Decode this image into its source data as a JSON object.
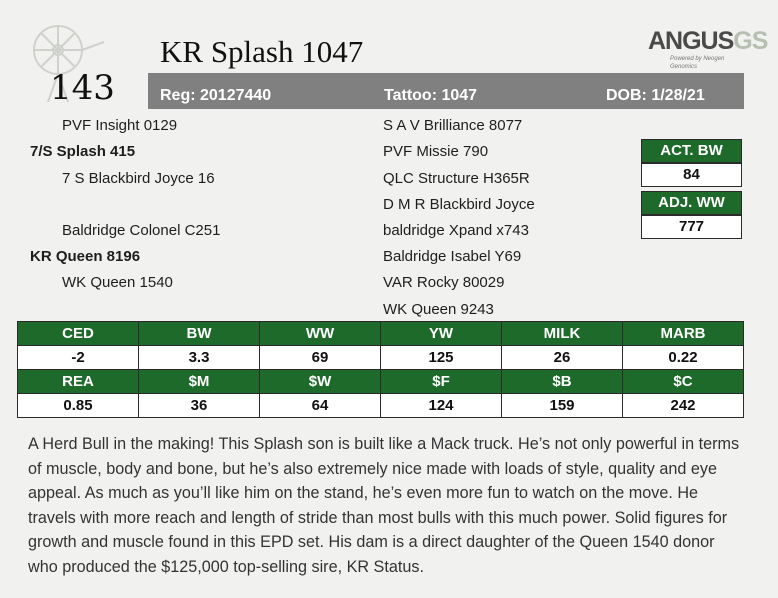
{
  "lot_number": "143",
  "animal_name": "KR Splash 1047",
  "logo": {
    "main": "ANGUS",
    "accent": "GS",
    "tagline": "Powered by Neogen Genomics"
  },
  "reg_bar": {
    "reg": "Reg: 20127440",
    "tattoo": "Tattoo: 1047",
    "dob": "DOB: 1/28/21"
  },
  "pedigree": {
    "left": [
      {
        "text": "PVF Insight 0129",
        "bold": false
      },
      {
        "text": "7/S Splash 415",
        "bold": true
      },
      {
        "text": "7 S Blackbird Joyce 16",
        "bold": false
      },
      {
        "text": "Baldridge Colonel C251",
        "bold": false
      },
      {
        "text": "KR Queen 8196",
        "bold": true
      },
      {
        "text": "WK Queen 1540",
        "bold": false
      }
    ],
    "right": [
      "S A V Brilliance 8077",
      "PVF Missie 790",
      "QLC Structure H365R",
      "D M R Blackbird Joyce",
      "baldridge Xpand x743",
      "Baldridge Isabel Y69",
      "VAR Rocky 80029",
      "WK Queen 9243"
    ]
  },
  "weights": {
    "act_bw_label": "ACT. BW",
    "act_bw_value": "84",
    "adj_ww_label": "ADJ. WW",
    "adj_ww_value": "777"
  },
  "epd": {
    "row1_headers": [
      "CED",
      "BW",
      "WW",
      "YW",
      "MILK",
      "MARB"
    ],
    "row1_values": [
      "-2",
      "3.3",
      "69",
      "125",
      "26",
      "0.22"
    ],
    "row2_headers": [
      "REA",
      "$M",
      "$W",
      "$F",
      "$B",
      "$C"
    ],
    "row2_values": [
      "0.85",
      "36",
      "64",
      "124",
      "159",
      "242"
    ]
  },
  "description": "A Herd Bull in the making! This Splash son is built like a Mack truck. He’s not only powerful in terms of muscle, body and bone, but he’s also extremely nice made with loads of style, quality and eye appeal.  As much as you’ll like him on the stand, he’s even more fun to watch on the move. He travels with more reach and length of stride than most bulls with this much power. Solid figures for growth and muscle found in this EPD set.  His dam is a direct daughter of the Queen 1540 donor who produced the $125,000 top-selling sire, KR Status.",
  "colors": {
    "green": "#1e6a2b",
    "gray_bar": "#808080",
    "background": "#f1f2f0"
  }
}
